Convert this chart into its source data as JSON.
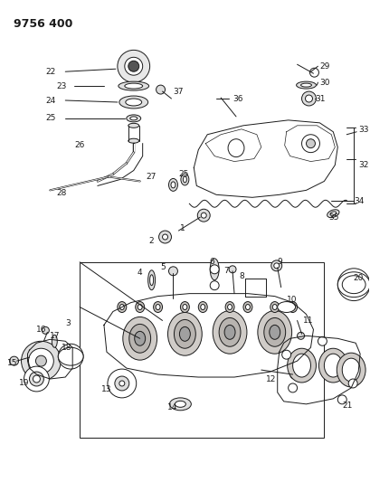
{
  "title": "9756 400",
  "bg_color": "#ffffff",
  "title_fontsize": 9,
  "fig_width": 4.1,
  "fig_height": 5.33,
  "dpi": 100,
  "line_color": "#1a1a1a",
  "lw": 0.7
}
